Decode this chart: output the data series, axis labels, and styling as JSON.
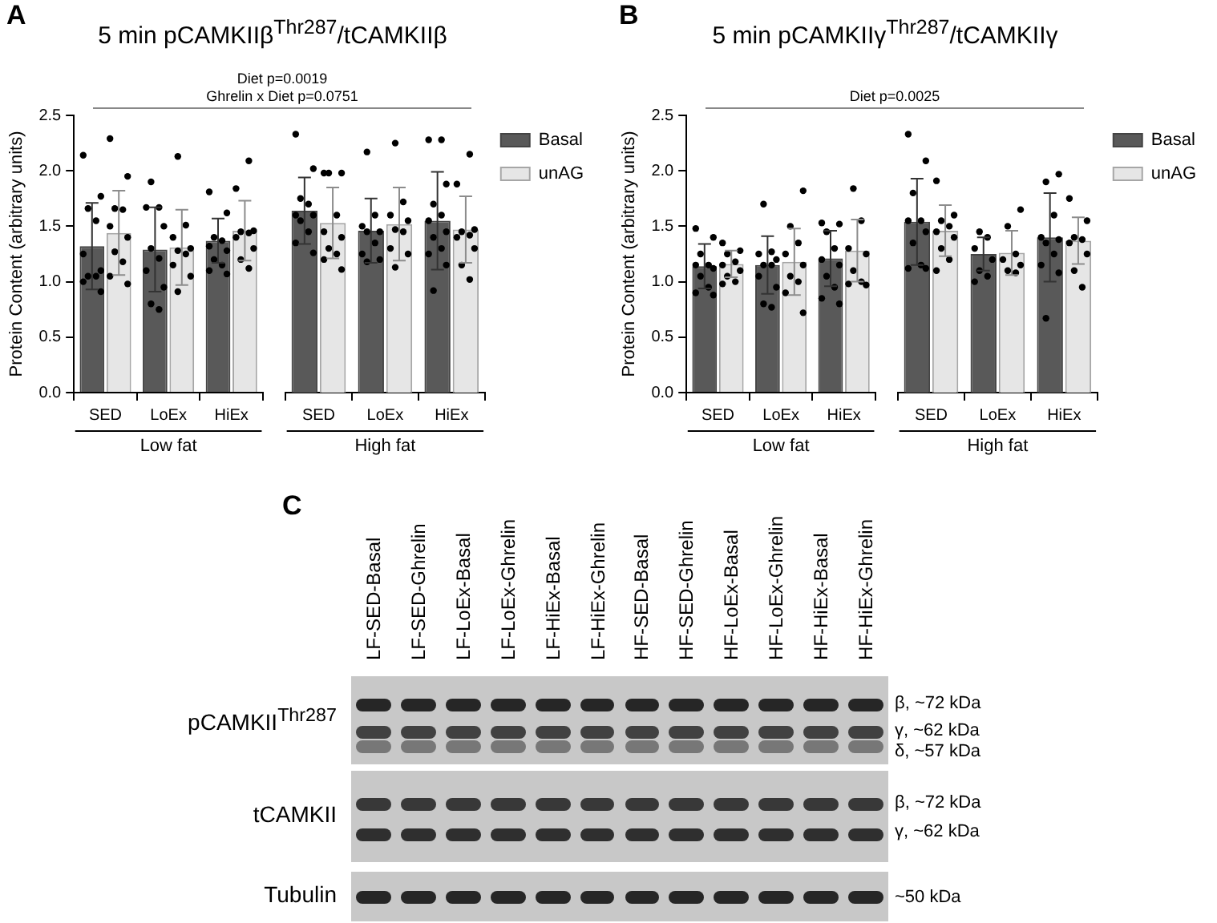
{
  "chart_data": [
    {
      "type": "bar",
      "title": "5 min pCAMKIIβ$^{Thr287}$/tCAMKIIβ",
      "ylabel": "Protein Content (arbitrary units)",
      "xlabel": "Low fat",
      "categories": [
        "SED",
        "LoEx",
        "HiEx"
      ],
      "series": [
        {
          "type": "bar",
          "color": "#595959",
          "values": [
            1.32,
            1.29,
            1.37
          ],
          "errors": [
            0.39,
            0.38,
            0.2
          ]
        },
        {
          "type": "bar",
          "color": "#e6e6e6",
          "values": [
            1.44,
            1.31,
            1.46
          ],
          "errors": [
            0.38,
            0.34,
            0.27
          ]
        },
        {
          "type": "scatter",
          "color": "#000000",
          "x": [
            "SED",
            "SED",
            "SED",
            "SED",
            "SED",
            "SED",
            "SED",
            "SED",
            "SED",
            "SED",
            "LoEx",
            "LoEx",
            "LoEx",
            "LoEx",
            "LoEx",
            "LoEx",
            "LoEx",
            "LoEx",
            "LoEx",
            "LoEx",
            "HiEx",
            "HiEx",
            "HiEx",
            "HiEx",
            "HiEx",
            "HiEx",
            "HiEx",
            "HiEx",
            "HiEx",
            "HiEx"
          ],
          "values": [
            2.14,
            1.77,
            1.66,
            1.55,
            1.25,
            1.1,
            1.05,
            1.05,
            1.0,
            0.91,
            1.9,
            1.67,
            1.67,
            1.5,
            1.3,
            1.21,
            1.1,
            0.95,
            0.8,
            0.75,
            1.81,
            1.62,
            1.4,
            1.37,
            1.32,
            1.28,
            1.2,
            1.15,
            1.1,
            1.07
          ]
        },
        {
          "type": "scatter",
          "color": "#000000",
          "x": [
            "SED",
            "SED",
            "SED",
            "SED",
            "SED",
            "SED",
            "SED",
            "SED",
            "SED",
            "SED",
            "LoEx",
            "LoEx",
            "LoEx",
            "LoEx",
            "LoEx",
            "LoEx",
            "LoEx",
            "LoEx",
            "LoEx",
            "HiEx",
            "HiEx",
            "HiEx",
            "HiEx",
            "HiEx",
            "HiEx",
            "HiEx",
            "HiEx",
            "HiEx"
          ],
          "values": [
            2.29,
            1.95,
            1.66,
            1.65,
            1.5,
            1.4,
            1.27,
            1.18,
            1.05,
            0.98,
            2.13,
            1.51,
            1.4,
            1.3,
            1.28,
            1.25,
            1.15,
            1.05,
            0.91,
            2.09,
            1.84,
            1.46,
            1.45,
            1.44,
            1.4,
            1.3,
            1.2,
            1.12
          ]
        }
      ],
      "ylim": [
        0,
        2.5
      ],
      "yticks": [
        {
          "value": 0,
          "label": "0.0"
        },
        {
          "value": 0.5,
          "label": "0.5"
        },
        {
          "value": 1,
          "label": "1.0"
        },
        {
          "value": 1.5,
          "label": "1.5"
        },
        {
          "value": 2,
          "label": "2.0"
        },
        {
          "value": 2.5,
          "label": "2.5"
        }
      ],
      "marker": "circle",
      "annotations": [
        "A",
        "Diet p=0.0019",
        "Ghrelin x Diet p=0.0751"
      ]
    },
    {
      "type": "bar",
      "xlabel": "High fat",
      "categories": [
        "SED",
        "LoEx",
        "HiEx"
      ],
      "series": [
        {
          "name": "Basal",
          "type": "bar",
          "color": "#595959",
          "values": [
            1.64,
            1.46,
            1.55
          ],
          "errors": [
            0.3,
            0.29,
            0.44
          ]
        },
        {
          "name": "unAG",
          "type": "bar",
          "color": "#e6e6e6",
          "values": [
            1.53,
            1.52,
            1.47
          ],
          "errors": [
            0.32,
            0.33,
            0.3
          ]
        },
        {
          "type": "scatter",
          "color": "#000000",
          "x": [
            "SED",
            "SED",
            "SED",
            "SED",
            "SED",
            "SED",
            "SED",
            "SED",
            "SED",
            "SED",
            "LoEx",
            "LoEx",
            "LoEx",
            "LoEx",
            "LoEx",
            "LoEx",
            "LoEx",
            "LoEx",
            "LoEx",
            "HiEx",
            "HiEx",
            "HiEx",
            "HiEx",
            "HiEx",
            "HiEx",
            "HiEx",
            "HiEx",
            "HiEx",
            "HiEx",
            "HiEx",
            "HiEx"
          ],
          "values": [
            2.33,
            2.02,
            1.75,
            1.7,
            1.6,
            1.6,
            1.55,
            1.45,
            1.35,
            1.26,
            2.17,
            1.6,
            1.5,
            1.45,
            1.45,
            1.35,
            1.25,
            1.2,
            1.18,
            2.28,
            2.28,
            1.88,
            1.7,
            1.6,
            1.55,
            1.45,
            1.4,
            1.3,
            1.25,
            1.15,
            0.92
          ]
        },
        {
          "type": "scatter",
          "color": "#000000",
          "x": [
            "SED",
            "SED",
            "SED",
            "SED",
            "SED",
            "SED",
            "SED",
            "SED",
            "SED",
            "SED",
            "LoEx",
            "LoEx",
            "LoEx",
            "LoEx",
            "LoEx",
            "LoEx",
            "LoEx",
            "LoEx",
            "LoEx",
            "HiEx",
            "HiEx",
            "HiEx",
            "HiEx",
            "HiEx",
            "HiEx",
            "HiEx",
            "HiEx",
            "HiEx"
          ],
          "values": [
            1.98,
            1.98,
            1.98,
            1.6,
            1.45,
            1.4,
            1.3,
            1.25,
            1.2,
            1.11,
            2.25,
            1.72,
            1.6,
            1.55,
            1.47,
            1.45,
            1.3,
            1.25,
            1.13,
            2.15,
            1.88,
            1.47,
            1.45,
            1.42,
            1.4,
            1.3,
            1.15,
            1.02
          ]
        }
      ],
      "ylim": [
        0,
        2.5
      ],
      "marker": "circle",
      "legend": "right",
      "tick_labels": "x"
    },
    {
      "type": "bar",
      "title": "5 min pCAMKIIγ$^{Thr287}$/tCAMKIIγ",
      "ylabel": "Protein Content (arbitrary units)",
      "xlabel": "Low fat",
      "categories": [
        "SED",
        "LoEx",
        "HiEx"
      ],
      "series": [
        {
          "type": "bar",
          "color": "#595959",
          "values": [
            1.14,
            1.15,
            1.21
          ],
          "errors": [
            0.2,
            0.26,
            0.25
          ]
        },
        {
          "type": "bar",
          "color": "#e6e6e6",
          "values": [
            1.16,
            1.18,
            1.28
          ],
          "errors": [
            0.12,
            0.3,
            0.28
          ]
        },
        {
          "type": "scatter",
          "color": "#000000",
          "x": [
            "SED",
            "SED",
            "SED",
            "SED",
            "SED",
            "SED",
            "SED",
            "SED",
            "SED",
            "SED",
            "LoEx",
            "LoEx",
            "LoEx",
            "LoEx",
            "LoEx",
            "LoEx",
            "LoEx",
            "LoEx",
            "LoEx",
            "LoEx",
            "HiEx",
            "HiEx",
            "HiEx",
            "HiEx",
            "HiEx",
            "HiEx",
            "HiEx",
            "HiEx",
            "HiEx",
            "HiEx"
          ],
          "values": [
            1.48,
            1.4,
            1.25,
            1.15,
            1.15,
            1.12,
            1.05,
            0.95,
            0.9,
            0.88,
            1.7,
            1.27,
            1.25,
            1.2,
            1.15,
            1.15,
            1.05,
            0.95,
            0.8,
            0.77,
            1.53,
            1.52,
            1.45,
            1.3,
            1.2,
            1.15,
            1.05,
            0.95,
            0.85,
            0.8
          ]
        },
        {
          "type": "scatter",
          "color": "#000000",
          "x": [
            "SED",
            "SED",
            "SED",
            "SED",
            "SED",
            "SED",
            "SED",
            "SED",
            "SED",
            "LoEx",
            "LoEx",
            "LoEx",
            "LoEx",
            "LoEx",
            "LoEx",
            "LoEx",
            "LoEx",
            "LoEx",
            "HiEx",
            "HiEx",
            "HiEx",
            "HiEx",
            "HiEx",
            "HiEx",
            "HiEx",
            "HiEx"
          ],
          "values": [
            1.35,
            1.28,
            1.25,
            1.18,
            1.15,
            1.1,
            1.05,
            1.0,
            0.98,
            1.82,
            1.5,
            1.35,
            1.25,
            1.15,
            1.05,
            1.0,
            0.9,
            0.72,
            1.84,
            1.55,
            1.3,
            1.25,
            1.1,
            1.0,
            0.98,
            0.97
          ]
        }
      ],
      "ylim": [
        0,
        2.5
      ],
      "yticks": [
        {
          "value": 0,
          "label": "0.0"
        },
        {
          "value": 0.5,
          "label": "0.5"
        },
        {
          "value": 1,
          "label": "1.0"
        },
        {
          "value": 1.5,
          "label": "1.5"
        },
        {
          "value": 2,
          "label": "2.0"
        },
        {
          "value": 2.5,
          "label": "2.5"
        }
      ],
      "marker": "circle",
      "annotations": [
        "B",
        "Diet p=0.0025"
      ]
    },
    {
      "type": "bar",
      "xlabel": "High fat",
      "categories": [
        "SED",
        "LoEx",
        "HiEx"
      ],
      "series": [
        {
          "name": "Basal",
          "type": "bar",
          "color": "#595959",
          "values": [
            1.54,
            1.25,
            1.4
          ],
          "errors": [
            0.39,
            0.15,
            0.4
          ]
        },
        {
          "name": "unAG",
          "type": "bar",
          "color": "#e6e6e6",
          "values": [
            1.46,
            1.26,
            1.37
          ],
          "errors": [
            0.23,
            0.2,
            0.21
          ]
        },
        {
          "type": "scatter",
          "color": "#000000",
          "x": [
            "SED",
            "SED",
            "SED",
            "SED",
            "SED",
            "SED",
            "SED",
            "SED",
            "SED",
            "SED",
            "LoEx",
            "LoEx",
            "LoEx",
            "LoEx",
            "LoEx",
            "LoEx",
            "LoEx",
            "HiEx",
            "HiEx",
            "HiEx",
            "HiEx",
            "HiEx",
            "HiEx",
            "HiEx",
            "HiEx",
            "HiEx",
            "HiEx"
          ],
          "values": [
            2.33,
            2.09,
            1.8,
            1.55,
            1.55,
            1.45,
            1.35,
            1.15,
            1.12,
            1.12,
            1.45,
            1.4,
            1.3,
            1.2,
            1.1,
            1.05,
            1.0,
            1.97,
            1.9,
            1.6,
            1.4,
            1.38,
            1.35,
            1.25,
            1.15,
            1.08,
            0.67
          ]
        },
        {
          "type": "scatter",
          "color": "#000000",
          "x": [
            "SED",
            "SED",
            "SED",
            "SED",
            "SED",
            "SED",
            "SED",
            "SED",
            "SED",
            "LoEx",
            "LoEx",
            "LoEx",
            "LoEx",
            "LoEx",
            "LoEx",
            "LoEx",
            "HiEx",
            "HiEx",
            "HiEx",
            "HiEx",
            "HiEx",
            "HiEx",
            "HiEx",
            "HiEx"
          ],
          "values": [
            1.91,
            1.6,
            1.55,
            1.5,
            1.45,
            1.4,
            1.3,
            1.2,
            1.1,
            1.65,
            1.5,
            1.25,
            1.2,
            1.15,
            1.1,
            1.08,
            1.75,
            1.55,
            1.4,
            1.38,
            1.35,
            1.25,
            1.1,
            0.95
          ]
        }
      ],
      "ylim": [
        0,
        2.5
      ],
      "marker": "circle",
      "legend": "right",
      "tick_labels": "x"
    },
    {
      "type": "other",
      "categories": [
        "LF-SED-Basal",
        "LF-SED-Ghrelin",
        "LF-LoEx-Basal",
        "LF-LoEx-Ghrelin",
        "LF-HiEx-Basal",
        "LF-HiEx-Ghrelin",
        "HF-SED-Basal",
        "HF-SED-Ghrelin",
        "HF-LoEx-Basal",
        "HF-LoEx-Ghrelin",
        "HF-HiEx-Basal",
        "HF-HiEx-Ghrelin"
      ],
      "y_categories": [
        "pCAMKII$^{Thr287}$",
        "tCAMKII",
        "Tubulin"
      ],
      "annotations": [
        "C",
        "β, ~72 kDa",
        "γ, ~62 kDa",
        "δ, ~57 kDa",
        "β, ~72 kDa",
        "γ, ~62 kDa",
        "~50 kDa"
      ]
    }
  ]
}
